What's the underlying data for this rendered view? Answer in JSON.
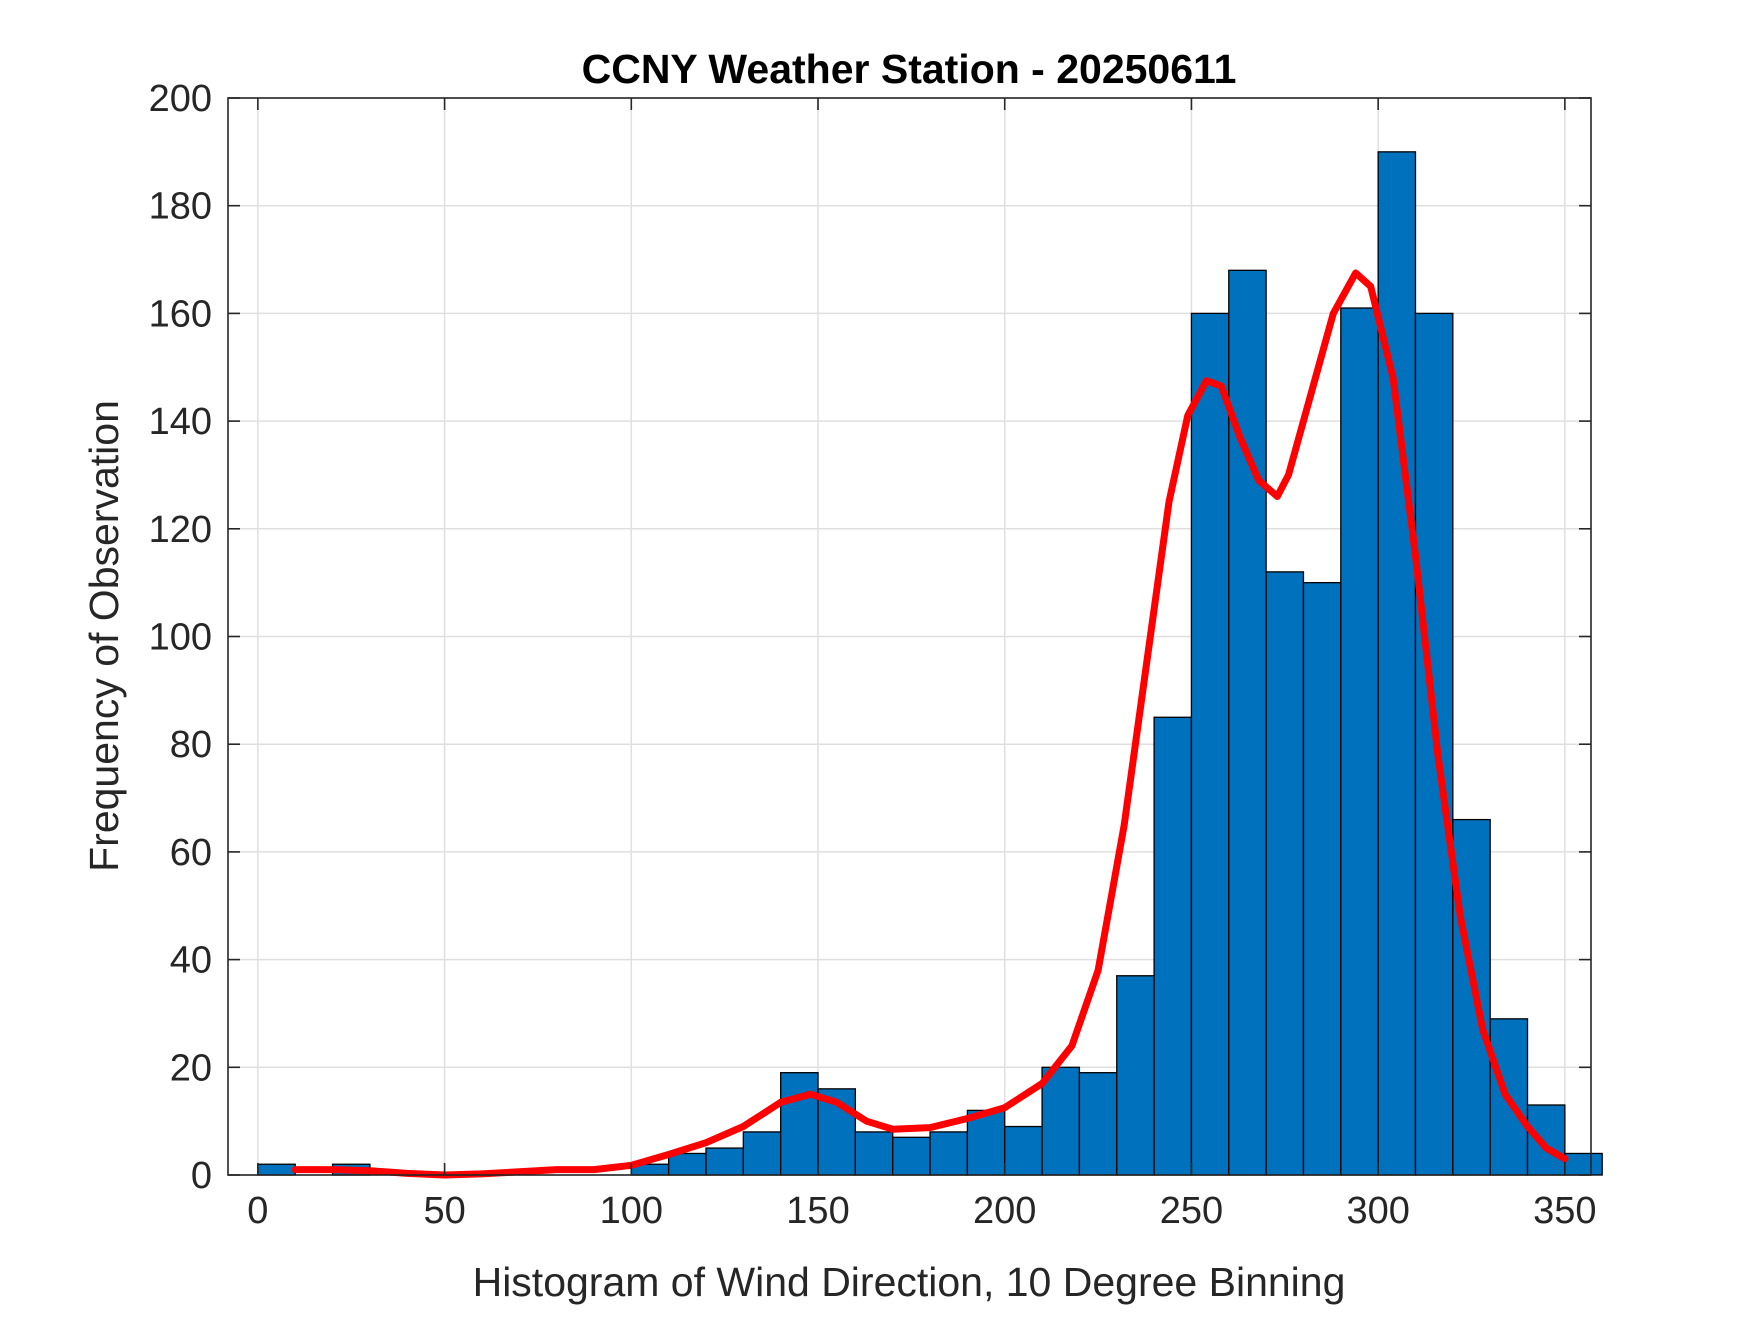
{
  "chart_data": {
    "type": "bar",
    "title": "CCNY Weather Station - 20250611",
    "xlabel": "Histogram of Wind Direction, 10 Degree Binning",
    "ylabel": "Frequency of Observation",
    "xlim": [
      -8,
      357
    ],
    "ylim": [
      0,
      200
    ],
    "xticks": [
      0,
      50,
      100,
      150,
      200,
      250,
      300,
      350
    ],
    "yticks": [
      0,
      20,
      40,
      60,
      80,
      100,
      120,
      140,
      160,
      180,
      200
    ],
    "grid": true,
    "bin_width": 10,
    "bins": [
      {
        "start": 0,
        "value": 2
      },
      {
        "start": 10,
        "value": 0
      },
      {
        "start": 20,
        "value": 2
      },
      {
        "start": 30,
        "value": 0
      },
      {
        "start": 40,
        "value": 0
      },
      {
        "start": 50,
        "value": 0
      },
      {
        "start": 60,
        "value": 0
      },
      {
        "start": 70,
        "value": 0
      },
      {
        "start": 80,
        "value": 0
      },
      {
        "start": 90,
        "value": 0
      },
      {
        "start": 100,
        "value": 2
      },
      {
        "start": 110,
        "value": 4
      },
      {
        "start": 120,
        "value": 5
      },
      {
        "start": 130,
        "value": 8
      },
      {
        "start": 140,
        "value": 19
      },
      {
        "start": 150,
        "value": 16
      },
      {
        "start": 160,
        "value": 8
      },
      {
        "start": 170,
        "value": 7
      },
      {
        "start": 180,
        "value": 8
      },
      {
        "start": 190,
        "value": 12
      },
      {
        "start": 200,
        "value": 9
      },
      {
        "start": 210,
        "value": 20
      },
      {
        "start": 220,
        "value": 19
      },
      {
        "start": 230,
        "value": 37
      },
      {
        "start": 240,
        "value": 85
      },
      {
        "start": 250,
        "value": 160
      },
      {
        "start": 260,
        "value": 168
      },
      {
        "start": 270,
        "value": 112
      },
      {
        "start": 280,
        "value": 110
      },
      {
        "start": 290,
        "value": 161
      },
      {
        "start": 300,
        "value": 190
      },
      {
        "start": 310,
        "value": 160
      },
      {
        "start": 320,
        "value": 66
      },
      {
        "start": 330,
        "value": 29
      },
      {
        "start": 340,
        "value": 13
      },
      {
        "start": 350,
        "value": 4
      }
    ],
    "series": [
      {
        "type": "line",
        "color": "#ff0000",
        "points": [
          [
            10,
            1
          ],
          [
            20,
            1
          ],
          [
            30,
            0.8
          ],
          [
            40,
            0.3
          ],
          [
            50,
            0
          ],
          [
            60,
            0.2
          ],
          [
            70,
            0.6
          ],
          [
            80,
            1
          ],
          [
            90,
            1
          ],
          [
            100,
            1.8
          ],
          [
            110,
            3.8
          ],
          [
            120,
            6
          ],
          [
            130,
            9
          ],
          [
            140,
            13.5
          ],
          [
            148,
            15
          ],
          [
            155,
            13.5
          ],
          [
            163,
            10
          ],
          [
            170,
            8.5
          ],
          [
            180,
            8.8
          ],
          [
            190,
            10.5
          ],
          [
            200,
            12.5
          ],
          [
            210,
            17
          ],
          [
            218,
            24
          ],
          [
            225,
            38
          ],
          [
            232,
            65
          ],
          [
            238,
            95
          ],
          [
            244,
            125
          ],
          [
            249,
            141
          ],
          [
            254,
            147.5
          ],
          [
            258,
            146.5
          ],
          [
            263,
            137
          ],
          [
            268,
            129
          ],
          [
            273,
            126
          ],
          [
            276,
            130
          ],
          [
            282,
            145
          ],
          [
            288,
            160
          ],
          [
            294,
            167.5
          ],
          [
            298,
            165
          ],
          [
            304,
            148
          ],
          [
            310,
            115
          ],
          [
            316,
            78
          ],
          [
            322,
            48
          ],
          [
            328,
            27
          ],
          [
            334,
            15
          ],
          [
            340,
            9
          ],
          [
            345,
            5
          ],
          [
            350,
            3
          ]
        ]
      }
    ],
    "colors": {
      "bar_fill": "#0072bd",
      "bar_stroke": "#000000",
      "curve": "#ff0000",
      "grid": "#dfdfdf",
      "axis": "#262626"
    }
  }
}
